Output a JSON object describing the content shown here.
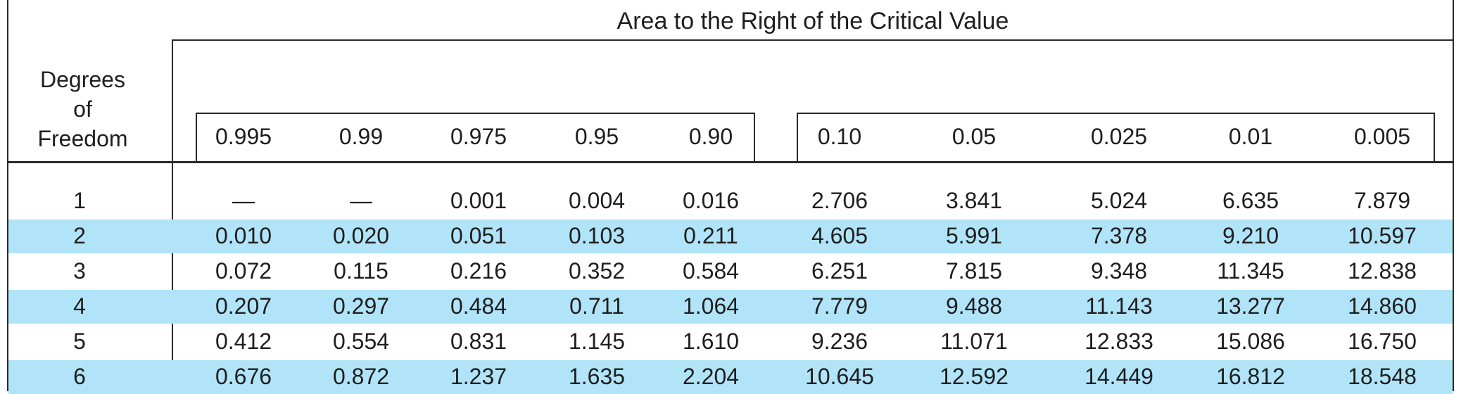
{
  "table": {
    "title": "Area to the Right of the Critical Value",
    "dof_header": [
      "Degrees",
      "of",
      "Freedom"
    ],
    "columns": [
      "0.995",
      "0.99",
      "0.975",
      "0.95",
      "0.90",
      "0.10",
      "0.05",
      "0.025",
      "0.01",
      "0.005"
    ],
    "rows": [
      {
        "df": "1",
        "values": [
          "—",
          "—",
          "0.001",
          "0.004",
          "0.016",
          "2.706",
          "3.841",
          "5.024",
          "6.635",
          "7.879"
        ],
        "shaded": false
      },
      {
        "df": "2",
        "values": [
          "0.010",
          "0.020",
          "0.051",
          "0.103",
          "0.211",
          "4.605",
          "5.991",
          "7.378",
          "9.210",
          "10.597"
        ],
        "shaded": true
      },
      {
        "df": "3",
        "values": [
          "0.072",
          "0.115",
          "0.216",
          "0.352",
          "0.584",
          "6.251",
          "7.815",
          "9.348",
          "11.345",
          "12.838"
        ],
        "shaded": false
      },
      {
        "df": "4",
        "values": [
          "0.207",
          "0.297",
          "0.484",
          "0.711",
          "1.064",
          "7.779",
          "9.488",
          "11.143",
          "13.277",
          "14.860"
        ],
        "shaded": true
      },
      {
        "df": "5",
        "values": [
          "0.412",
          "0.554",
          "0.831",
          "1.145",
          "1.610",
          "9.236",
          "11.071",
          "12.833",
          "15.086",
          "16.750"
        ],
        "shaded": false
      },
      {
        "df": "6",
        "values": [
          "0.676",
          "0.872",
          "1.237",
          "1.635",
          "2.204",
          "10.645",
          "12.592",
          "14.449",
          "16.812",
          "18.548"
        ],
        "shaded": true
      }
    ]
  }
}
